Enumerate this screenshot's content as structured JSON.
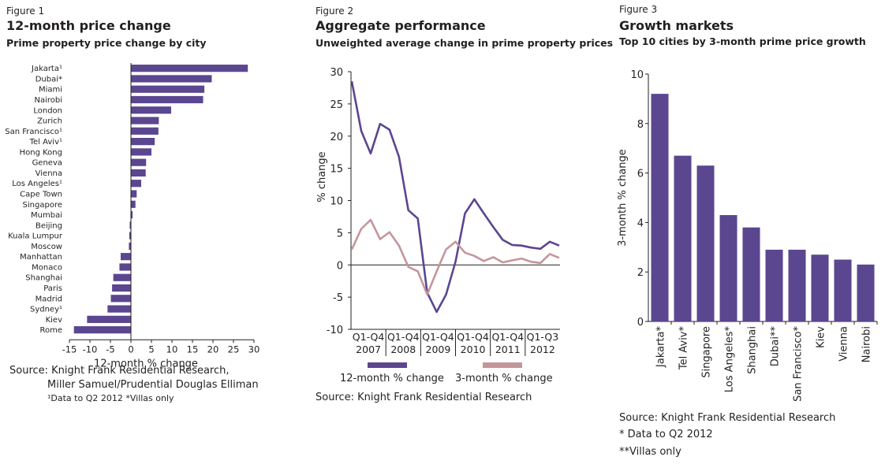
{
  "colors": {
    "primary": "#5b4690",
    "secondary": "#c4969b",
    "axis": "#231f20"
  },
  "chart_data": [
    {
      "type": "bar",
      "orientation": "horizontal",
      "figure_label": "Figure 1",
      "title": "12-month price change",
      "subtitle": "Prime property price change by city",
      "xlabel": "12-month % change",
      "ylabel": "",
      "xlim": [
        -15,
        30
      ],
      "xticks": [
        "-15",
        "-10",
        "-5",
        "0",
        "5",
        "10",
        "15",
        "20",
        "25",
        "30"
      ],
      "categories": [
        "Jakarta¹",
        "Dubai*",
        "Miami",
        "Nairobi",
        "London",
        "Zurich",
        "San Francisco¹",
        "Tel Aviv¹",
        "Hong Kong",
        "Geneva",
        "Vienna",
        "Los Angeles¹",
        "Cape Town",
        "Singapore",
        "Mumbai",
        "Beijing",
        "Kuala Lumpur",
        "Moscow",
        "Manhattan",
        "Monaco",
        "Shanghai",
        "Paris",
        "Madrid",
        "Sydney¹",
        "Kiev",
        "Rome"
      ],
      "values": [
        28.5,
        19.7,
        17.9,
        17.6,
        9.8,
        6.8,
        6.7,
        5.8,
        5.0,
        3.7,
        3.6,
        2.5,
        1.4,
        1.1,
        0.4,
        -0.3,
        -0.4,
        -0.5,
        -2.5,
        -2.8,
        -4.3,
        -4.6,
        -4.9,
        -5.7,
        -10.7,
        -13.9
      ],
      "source_lines": [
        "Source: Knight Frank Residential Research,",
        "Miller Samuel/Prudential Douglas Elliman"
      ],
      "footnote": "¹Data to Q2 2012 *Villas only"
    },
    {
      "type": "line",
      "figure_label": "Figure 2",
      "title": "Aggregate performance",
      "subtitle": "Unweighted average change in prime property prices",
      "xlabel": "",
      "ylabel": "% change",
      "ylim": [
        -10,
        30
      ],
      "yticks": [
        "30",
        "25",
        "20",
        "15",
        "10",
        "5",
        "0",
        "-5",
        "-10"
      ],
      "x": [
        "Q1 2007",
        "Q2 2007",
        "Q3 2007",
        "Q4 2007",
        "Q1 2008",
        "Q2 2008",
        "Q3 2008",
        "Q4 2008",
        "Q1 2009",
        "Q2 2009",
        "Q3 2009",
        "Q4 2009",
        "Q1 2010",
        "Q2 2010",
        "Q3 2010",
        "Q4 2010",
        "Q1 2011",
        "Q2 2011",
        "Q3 2011",
        "Q4 2011",
        "Q1 2012",
        "Q2 2012",
        "Q3 2012"
      ],
      "x_groups": [
        {
          "quarters": "Q1-Q4",
          "year": "2007"
        },
        {
          "quarters": "Q1-Q4",
          "year": "2008"
        },
        {
          "quarters": "Q1-Q4",
          "year": "2009"
        },
        {
          "quarters": "Q1-Q4",
          "year": "2010"
        },
        {
          "quarters": "Q1-Q4",
          "year": "2011"
        },
        {
          "quarters": "Q1-Q3",
          "year": "2012"
        }
      ],
      "series": [
        {
          "name": "12-month % change",
          "color": "#5b4690",
          "values": [
            28.5,
            20.8,
            17.3,
            21.9,
            21.0,
            16.8,
            8.5,
            7.2,
            -4.3,
            -7.3,
            -4.6,
            0.5,
            8.0,
            10.2,
            8.0,
            5.9,
            3.9,
            3.1,
            3.0,
            2.7,
            2.5,
            3.6,
            3.0
          ]
        },
        {
          "name": "3-month % change",
          "color": "#c4969b",
          "values": [
            2.4,
            5.6,
            7.0,
            4.0,
            5.1,
            3.0,
            -0.3,
            -1.0,
            -4.6,
            -1.0,
            2.4,
            3.6,
            1.9,
            1.4,
            0.6,
            1.2,
            0.4,
            0.7,
            1.0,
            0.5,
            0.3,
            1.7,
            1.1
          ]
        }
      ],
      "legend_position": "bottom",
      "source": "Source: Knight Frank Residential Research"
    },
    {
      "type": "bar",
      "figure_label": "Figure 3",
      "title": "Growth markets",
      "subtitle": "Top 10 cities by 3-month prime price growth",
      "xlabel": "",
      "ylabel": "3-month % change",
      "ylim": [
        0,
        10
      ],
      "yticks": [
        "0",
        "2",
        "4",
        "6",
        "8",
        "10"
      ],
      "categories": [
        "Jakarta*",
        "Tel Aviv*",
        "Singapore",
        "Los Angeles*",
        "Shanghai",
        "Dubai**",
        "San Francisco*",
        "Kiev",
        "Vienna",
        "Nairobi"
      ],
      "values": [
        9.2,
        6.7,
        6.3,
        4.3,
        3.8,
        2.9,
        2.9,
        2.7,
        2.5,
        2.3
      ],
      "source_lines": [
        "Source: Knight Frank Residential Research",
        "* Data to Q2 2012",
        "**Villas only"
      ]
    }
  ]
}
